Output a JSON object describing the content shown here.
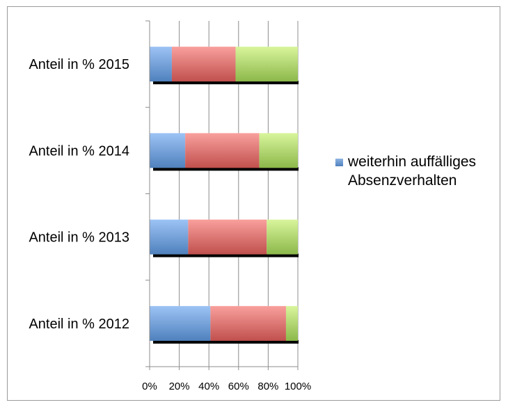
{
  "chart_data": {
    "type": "bar",
    "orientation": "horizontal",
    "stacked": "percent",
    "categories": [
      "Anteil in % 2015",
      "Anteil in % 2014",
      "Anteil in % 2013",
      "Anteil in % 2012"
    ],
    "series": [
      {
        "name": "weiterhin auffälliges Absenzverhalten",
        "values": [
          15,
          24,
          26,
          41
        ],
        "color": "#4f81bd"
      },
      {
        "values": [
          43,
          50,
          53,
          51
        ],
        "color": "#c0504d"
      },
      {
        "values": [
          42,
          26,
          21,
          8
        ],
        "color": "#9bbb59"
      }
    ],
    "xlim": [
      0,
      100
    ],
    "x_ticks": [
      "0%",
      "20%",
      "40%",
      "60%",
      "80%",
      "100%"
    ],
    "grid": true,
    "legend": "right"
  }
}
